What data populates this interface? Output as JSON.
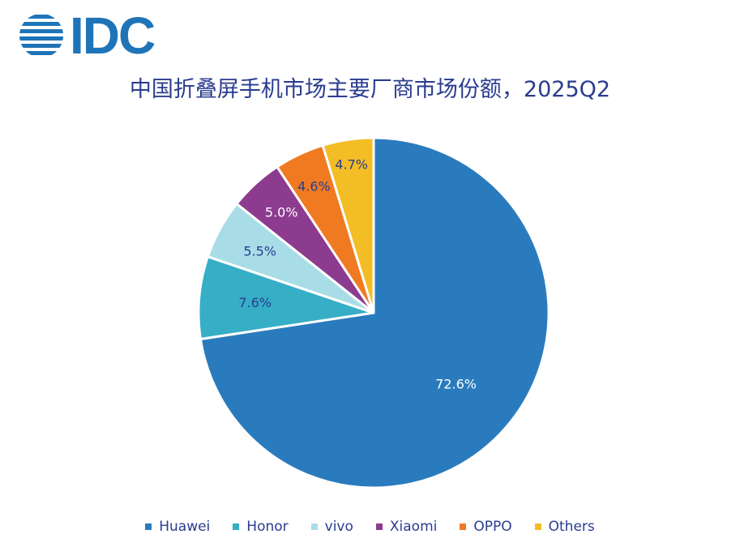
{
  "logo": {
    "text": "IDC"
  },
  "chart_data": {
    "type": "pie",
    "title": "中国折叠屏手机市场主要厂商市场份额，2025Q2",
    "categories": [
      "Huawei",
      "Honor",
      "vivo",
      "Xiaomi",
      "OPPO",
      "Others"
    ],
    "values": [
      72.6,
      7.6,
      5.5,
      5.0,
      4.6,
      4.7
    ],
    "labels": [
      "72.6%",
      "7.6%",
      "5.5%",
      "5.0%",
      "4.6%",
      "4.7%"
    ],
    "colors": [
      "#2a7bbd",
      "#36aec6",
      "#a8dde8",
      "#8c3b8e",
      "#ef7a22",
      "#f3bd26"
    ],
    "label_colors": [
      "#ffffff",
      "#2a3c8f",
      "#2a3c8f",
      "#ffffff",
      "#2a3c8f",
      "#2a3c8f"
    ],
    "legend_position": "bottom"
  }
}
